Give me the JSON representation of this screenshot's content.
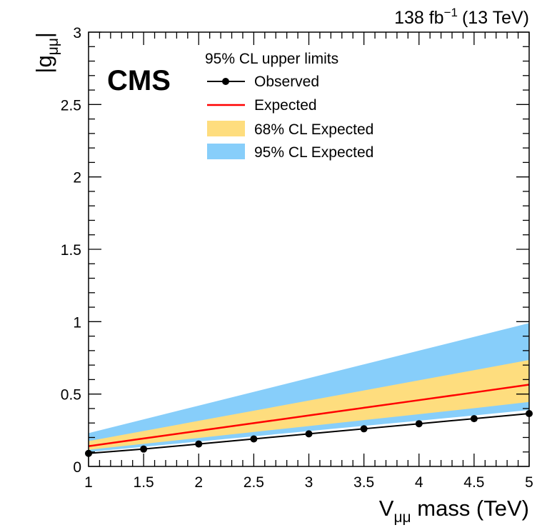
{
  "lumi_label": {
    "main": "138 fb",
    "exponent": "−1",
    "energy": "(13 TeV)"
  },
  "experiment_label": "CMS",
  "chart_data": {
    "type": "line",
    "xlabel": {
      "base": "V",
      "subscript": "μμ",
      "rest": " mass (TeV)"
    },
    "ylabel": {
      "prefix": "|g",
      "subscript": "μμ",
      "suffix": "|"
    },
    "xlim": [
      1,
      5
    ],
    "ylim": [
      0,
      3
    ],
    "x_ticks": [
      1,
      1.5,
      2,
      2.5,
      3,
      3.5,
      4,
      4.5,
      5
    ],
    "x_tick_labels": [
      "1",
      "1.5",
      "2",
      "2.5",
      "3",
      "3.5",
      "4",
      "4.5",
      "5"
    ],
    "y_ticks": [
      0,
      0.5,
      1,
      1.5,
      2,
      2.5,
      3
    ],
    "y_tick_labels": [
      "0",
      "0.5",
      "1",
      "1.5",
      "2",
      "2.5",
      "3"
    ],
    "legend": {
      "header": "95% CL upper limits",
      "entries": [
        "Observed",
        "Expected",
        "68% CL Expected",
        "95% CL Expected"
      ],
      "position": "top-center"
    },
    "x": [
      1,
      1.5,
      2,
      2.5,
      3,
      3.5,
      4,
      4.5,
      5
    ],
    "observed": [
      0.09,
      0.12,
      0.155,
      0.19,
      0.225,
      0.26,
      0.295,
      0.33,
      0.365
    ],
    "expected": [
      0.14,
      0.193,
      0.246,
      0.299,
      0.352,
      0.405,
      0.458,
      0.511,
      0.565
    ],
    "band68_low": [
      0.115,
      0.156,
      0.197,
      0.238,
      0.279,
      0.32,
      0.361,
      0.402,
      0.445
    ],
    "band68_high": [
      0.175,
      0.245,
      0.315,
      0.385,
      0.455,
      0.525,
      0.595,
      0.665,
      0.735
    ],
    "band95_low": [
      0.1,
      0.136,
      0.172,
      0.208,
      0.244,
      0.28,
      0.316,
      0.352,
      0.39
    ],
    "band95_high": [
      0.23,
      0.325,
      0.42,
      0.515,
      0.61,
      0.705,
      0.8,
      0.895,
      0.99
    ],
    "colors": {
      "observed": "#000000",
      "expected": "#ff0000",
      "band68": "#fedd7e",
      "band95": "#87cefa"
    }
  }
}
